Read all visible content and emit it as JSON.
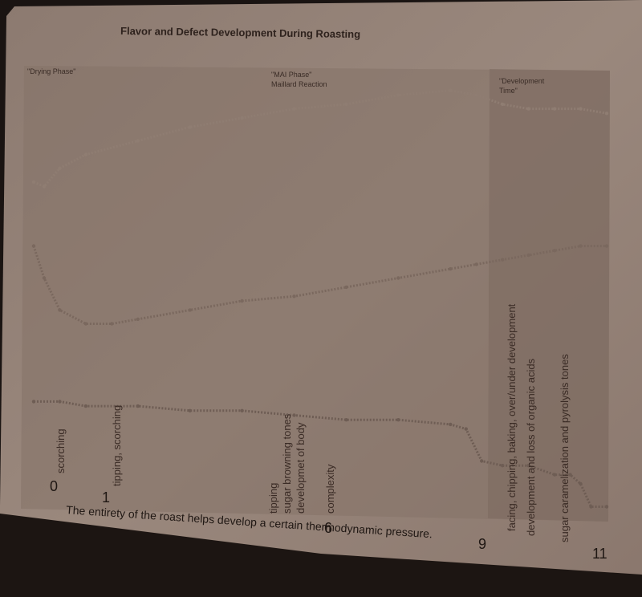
{
  "chart_data": {
    "type": "line",
    "title": "Flavor and Defect Development During Roasting",
    "xlabel": "",
    "ylabel": "",
    "x_ticks": [
      "0",
      "1",
      "6",
      "9",
      "11"
    ],
    "xlim": [
      0,
      11
    ],
    "ylim": [
      0,
      100
    ],
    "phases": [
      {
        "label_line1": "\"Drying Phase\"",
        "label_line2": ""
      },
      {
        "label_line1": "\"MAI Phase\"",
        "label_line2": "Maillard Reaction"
      },
      {
        "label_line1": "\"Development",
        "label_line2": "Time\""
      }
    ],
    "series": [
      {
        "color": "#8f7d72",
        "x": [
          0,
          0.2,
          0.5,
          1,
          2,
          3,
          4,
          5,
          6,
          7,
          8,
          8.5,
          9,
          9.5,
          10,
          10.5,
          11
        ],
        "values": [
          76,
          75,
          79,
          82,
          85,
          88,
          90,
          92,
          93,
          95,
          96,
          95,
          93,
          92,
          92,
          92,
          91
        ]
      },
      {
        "color": "#7a685e",
        "x": [
          0,
          0.2,
          0.5,
          1,
          1.5,
          2,
          3,
          4,
          5,
          6,
          7,
          8,
          8.5,
          9,
          9.5,
          10,
          10.5,
          11
        ],
        "values": [
          62,
          55,
          48,
          45,
          45,
          46,
          48,
          50,
          51,
          53,
          55,
          57,
          58,
          59,
          60,
          61,
          62,
          62
        ]
      },
      {
        "color": "#6e5d54",
        "x": [
          0,
          0.5,
          1,
          2,
          3,
          4,
          5,
          6,
          7,
          8,
          8.3,
          8.6,
          9,
          9.5,
          10,
          10.3,
          10.5,
          10.7,
          11
        ],
        "values": [
          28,
          28,
          27,
          27,
          26,
          26,
          25,
          24,
          24,
          23,
          22,
          15,
          14,
          14,
          12,
          12,
          10,
          5,
          5
        ]
      }
    ],
    "annotations": [
      {
        "text": "scorching"
      },
      {
        "text": "tipping, scorching"
      },
      {
        "text": "tipping"
      },
      {
        "text": "sugar browning tones"
      },
      {
        "text": "developmet of body"
      },
      {
        "text": "complexity"
      },
      {
        "text": "facing, chipping, baking, over/under development"
      },
      {
        "text": "development and loss of organic acids"
      },
      {
        "text": "sugar caramelization and pyrolysis tones"
      }
    ],
    "caption": "The entirety of the roast helps develop a certain thermodynamic pressure.",
    "grid": false,
    "legend": "none"
  }
}
